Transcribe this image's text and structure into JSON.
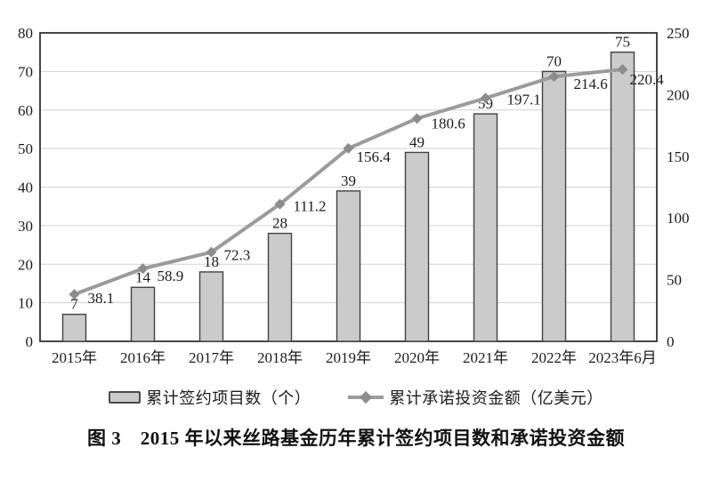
{
  "figure": {
    "caption": "图 3　2015 年以来丝路基金历年累计签约项目数和承诺投资金额"
  },
  "legend": {
    "items": [
      {
        "label": "累计签约项目数（个）",
        "swatch": "bar"
      },
      {
        "label": "累计承诺投资金额（亿美元）",
        "swatch": "line-diamond"
      }
    ]
  },
  "chart_data": {
    "type": "bar",
    "subtype": "bar+line combo, dual y-axis",
    "categories": [
      "2015年",
      "2016年",
      "2017年",
      "2018年",
      "2019年",
      "2020年",
      "2021年",
      "2022年",
      "2023年6月"
    ],
    "series": [
      {
        "name": "累计签约项目数（个）",
        "type": "bar",
        "axis": "left",
        "values": [
          7,
          14,
          18,
          28,
          39,
          49,
          59,
          70,
          75
        ]
      },
      {
        "name": "累计承诺投资金额（亿美元）",
        "type": "line",
        "marker": "diamond",
        "axis": "right",
        "values": [
          38.1,
          58.9,
          72.3,
          111.2,
          156.4,
          180.6,
          197.1,
          214.6,
          220.4
        ],
        "label_offsets": [
          [
            15,
            10
          ],
          [
            16,
            14
          ],
          [
            14,
            9
          ],
          [
            15,
            8
          ],
          [
            9,
            15
          ],
          [
            16,
            11
          ],
          [
            24,
            7
          ],
          [
            22,
            14
          ],
          [
            8,
            17
          ]
        ]
      }
    ],
    "left_axis": {
      "min": 0,
      "max": 80,
      "step": 10,
      "tick_labels": [
        "0",
        "10",
        "20",
        "30",
        "40",
        "50",
        "60",
        "70",
        "80"
      ]
    },
    "right_axis": {
      "min": 0,
      "max": 250,
      "step": 50,
      "tick_labels": [
        "0",
        "50",
        "100",
        "150",
        "200",
        "250"
      ]
    },
    "grid": "horizontal gridlines at left-axis steps",
    "legend_position": "bottom",
    "title": "图 3　2015 年以来丝路基金历年累计签约项目数和承诺投资金额",
    "colors": {
      "bar_fill": "#cbcbcb",
      "bar_stroke": "#424242",
      "line": "#9b9b9b",
      "marker": "#8c8c8c",
      "gridline": "#d2d2d2",
      "plot_border": "#333333",
      "text": "#1c1c1c"
    }
  }
}
